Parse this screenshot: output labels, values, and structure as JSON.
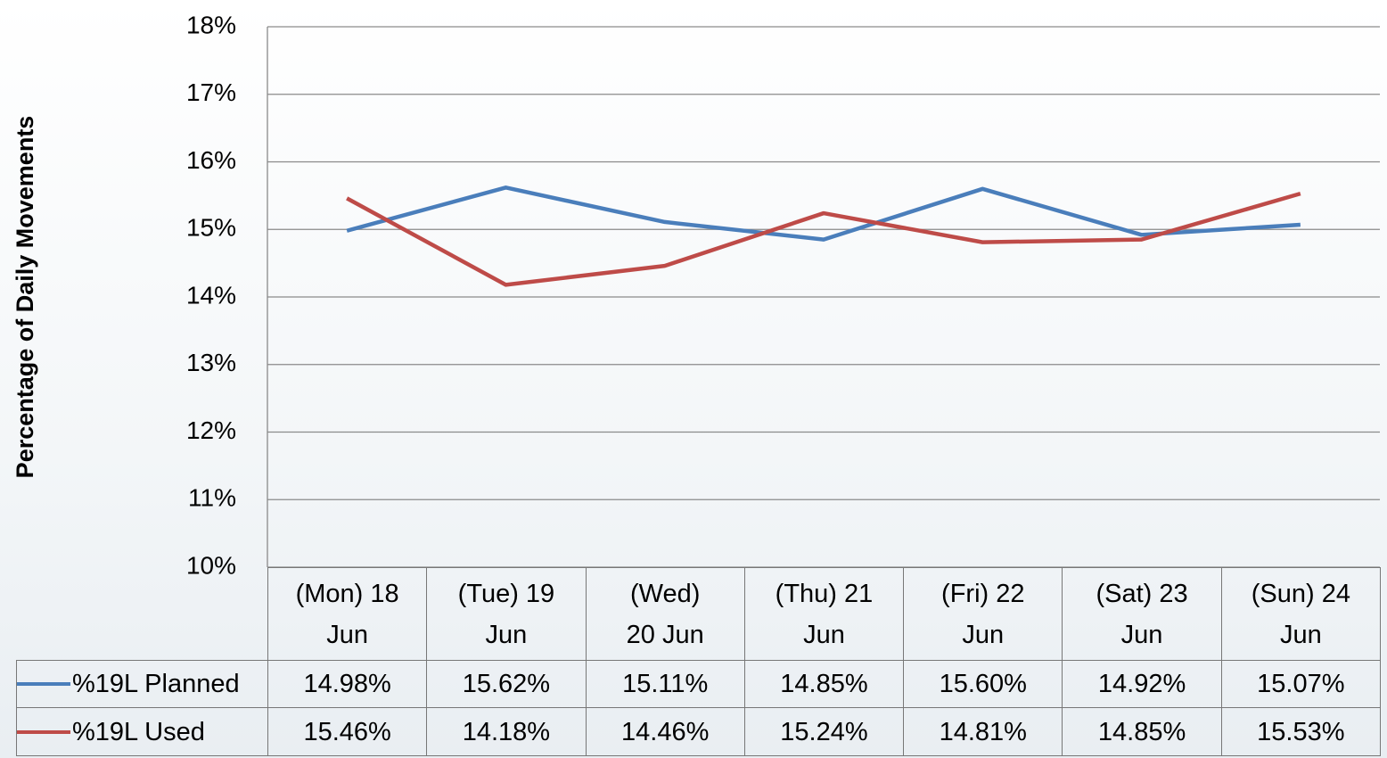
{
  "chart_data": {
    "type": "line",
    "y_label": "Percentage of Daily Movements",
    "categories": [
      "(Mon) 18 Jun",
      "(Tue) 19 Jun",
      "(Wed) 20 Jun",
      "(Thu) 21 Jun",
      "(Fri) 22 Jun",
      "(Sat) 23 Jun",
      "(Sun) 24 Jun"
    ],
    "series": [
      {
        "name": "%19L Planned",
        "color": "#4a7ebb",
        "values": [
          14.98,
          15.62,
          15.11,
          14.85,
          15.6,
          14.92,
          15.07
        ],
        "value_labels": [
          "14.98%",
          "15.62%",
          "15.11%",
          "14.85%",
          "15.60%",
          "14.92%",
          "15.07%"
        ]
      },
      {
        "name": "%19L Used",
        "color": "#be4b48",
        "values": [
          15.46,
          14.18,
          14.46,
          15.24,
          14.81,
          14.85,
          15.53
        ],
        "value_labels": [
          "15.46%",
          "14.18%",
          "14.46%",
          "15.24%",
          "14.81%",
          "14.85%",
          "15.53%"
        ]
      }
    ],
    "ylim": [
      10,
      18
    ],
    "yticks": [
      {
        "value": 10,
        "label": "10%"
      },
      {
        "value": 11,
        "label": "11%"
      },
      {
        "value": 12,
        "label": "12%"
      },
      {
        "value": 13,
        "label": "13%"
      },
      {
        "value": 14,
        "label": "14%"
      },
      {
        "value": 15,
        "label": "15%"
      },
      {
        "value": 16,
        "label": "16%"
      },
      {
        "value": 17,
        "label": "17%"
      },
      {
        "value": 18,
        "label": "18%"
      }
    ],
    "grid": true
  }
}
